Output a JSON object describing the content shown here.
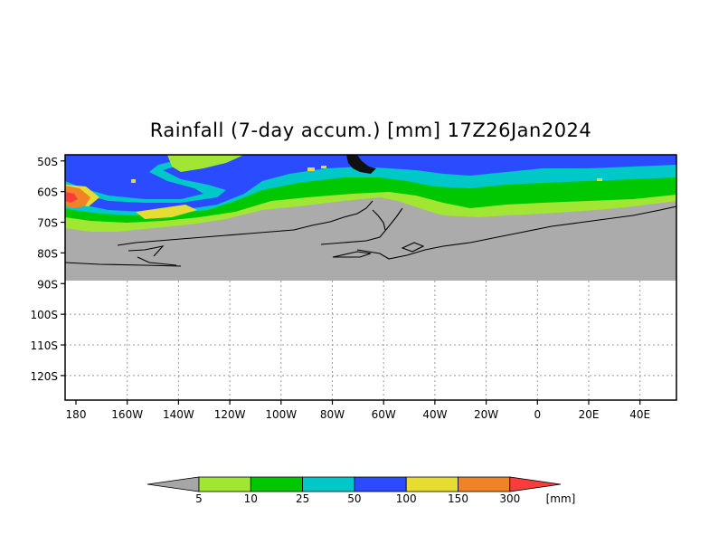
{
  "title": "Rainfall (7-day accum.) [mm] 17Z26Jan2024",
  "map": {
    "lat_labels": [
      "50S",
      "60S",
      "70S",
      "80S",
      "90S",
      "100S",
      "110S",
      "120S"
    ],
    "lon_labels": [
      "180",
      "160W",
      "140W",
      "120W",
      "100W",
      "80W",
      "60W",
      "40W",
      "20W",
      "0",
      "20E",
      "40E"
    ],
    "lon_range": [
      180,
      55
    ],
    "lat_range": [
      -48,
      -128
    ],
    "no_data_color": "#ababab",
    "coastline_color": "#000000",
    "grid": "dotted"
  },
  "legend": {
    "labels": [
      "5",
      "10",
      "25",
      "50",
      "100",
      "150",
      "300"
    ],
    "unit": "[mm]",
    "colors": [
      "#a6a6a6",
      "#a0e632",
      "#00c800",
      "#00c8c8",
      "#2a4bff",
      "#e6dc32",
      "#f08228",
      "#fa3c3c"
    ]
  }
}
